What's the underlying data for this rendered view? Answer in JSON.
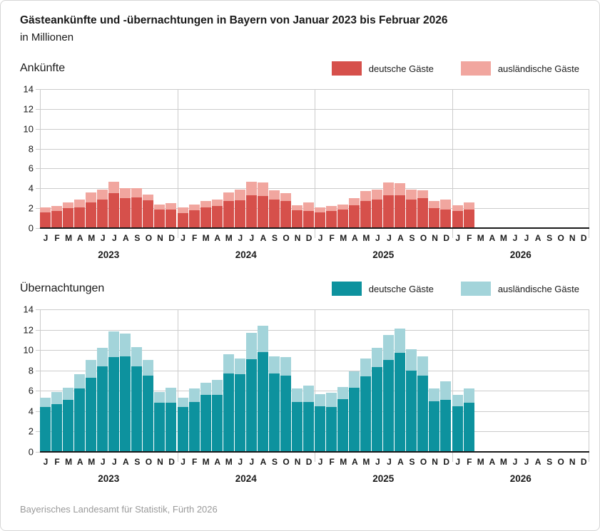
{
  "title": "Gästeankünfte und -übernachtungen in Bayern von Januar 2023 bis Februar 2026",
  "subtitle": "in Millionen",
  "source": "Bayerisches Landesamt für Statistik, Fürth 2026",
  "colors": {
    "arrivals_domestic": "#d6504b",
    "arrivals_foreign": "#f1a69f",
    "nights_domestic": "#0d929e",
    "nights_foreign": "#a3d4da",
    "grid": "#cccccc",
    "axis": "#1a1a1a",
    "source_text": "#9a9a9a"
  },
  "x_axis": {
    "month_labels": [
      "J",
      "F",
      "M",
      "A",
      "M",
      "J",
      "J",
      "A",
      "S",
      "O",
      "N",
      "D"
    ],
    "years": [
      "2023",
      "2024",
      "2025",
      "2026"
    ],
    "slots_per_year": 12
  },
  "y_ticks": [
    0,
    2,
    4,
    6,
    8,
    10,
    12,
    14
  ],
  "chart_data": [
    {
      "type": "bar",
      "stacked": true,
      "title": "Ankünfte",
      "unit": "Millionen",
      "ylim": [
        0,
        14
      ],
      "grid": true,
      "legend_position": "top-right",
      "months_with_data": 38,
      "total_slots": 48,
      "series": [
        {
          "name": "deutsche Gäste",
          "color": "#d6504b",
          "values": [
            1.6,
            1.7,
            2.0,
            2.1,
            2.6,
            2.9,
            3.5,
            3.0,
            3.1,
            2.8,
            1.9,
            1.9,
            1.5,
            1.8,
            2.1,
            2.2,
            2.7,
            2.8,
            3.3,
            3.2,
            2.9,
            2.7,
            1.8,
            1.7,
            1.6,
            1.7,
            1.9,
            2.3,
            2.7,
            2.9,
            3.3,
            3.3,
            2.9,
            3.0,
            2.0,
            1.9,
            1.7,
            1.9
          ]
        },
        {
          "name": "ausländische Gäste",
          "color": "#f1a69f",
          "values": [
            0.5,
            0.5,
            0.6,
            0.8,
            1.0,
            1.0,
            1.2,
            1.0,
            0.9,
            0.6,
            0.5,
            0.6,
            0.6,
            0.6,
            0.6,
            0.7,
            0.9,
            1.1,
            1.4,
            1.4,
            0.9,
            0.8,
            0.5,
            0.9,
            0.5,
            0.5,
            0.5,
            0.7,
            1.0,
            1.0,
            1.3,
            1.2,
            1.0,
            0.8,
            0.7,
            1.0,
            0.6,
            0.7
          ]
        }
      ]
    },
    {
      "type": "bar",
      "stacked": true,
      "title": "Übernachtungen",
      "unit": "Millionen",
      "ylim": [
        0,
        14
      ],
      "grid": true,
      "legend_position": "top-right",
      "months_with_data": 38,
      "total_slots": 48,
      "series": [
        {
          "name": "deutsche Gäste",
          "color": "#0d929e",
          "values": [
            4.4,
            4.7,
            5.1,
            6.2,
            7.3,
            8.4,
            9.3,
            9.4,
            8.4,
            7.5,
            4.8,
            4.8,
            4.4,
            4.9,
            5.6,
            5.6,
            7.7,
            7.6,
            9.1,
            9.8,
            7.7,
            7.5,
            4.9,
            4.9,
            4.5,
            4.4,
            5.2,
            6.3,
            7.4,
            8.3,
            9.0,
            9.7,
            8.0,
            7.5,
            5.0,
            5.1,
            4.5,
            4.8
          ]
        },
        {
          "name": "ausländische Gäste",
          "color": "#a3d4da",
          "values": [
            0.9,
            1.2,
            1.2,
            1.4,
            1.7,
            1.8,
            2.5,
            2.2,
            1.9,
            1.5,
            1.1,
            1.5,
            0.9,
            1.3,
            1.2,
            1.5,
            1.9,
            1.6,
            2.6,
            2.6,
            1.7,
            1.8,
            1.3,
            1.6,
            1.2,
            1.4,
            1.2,
            1.6,
            1.8,
            1.9,
            2.5,
            2.4,
            2.1,
            1.9,
            1.2,
            1.8,
            1.1,
            1.4
          ]
        }
      ]
    }
  ]
}
